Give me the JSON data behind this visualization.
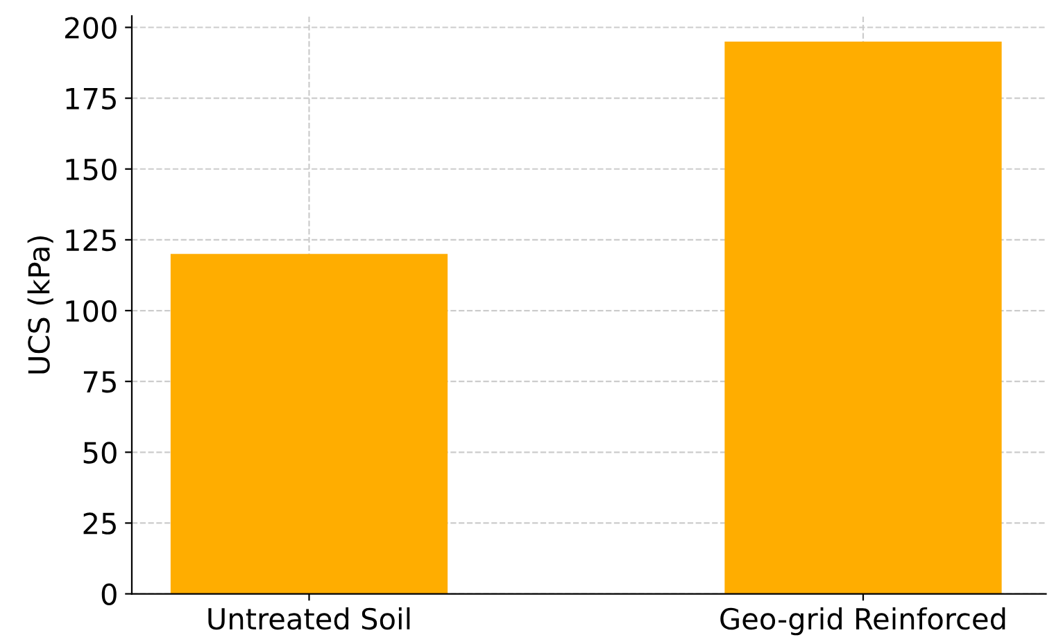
{
  "chart_data": {
    "type": "bar",
    "ylabel": "UCS (kPa)",
    "categories": [
      "Untreated Soil",
      "Geo-grid Reinforced"
    ],
    "values": [
      120,
      195
    ],
    "color": "#ffad00",
    "ylim": [
      0,
      204
    ],
    "yticks": [
      0,
      25,
      50,
      75,
      100,
      125,
      150,
      175,
      200
    ],
    "grid": true
  }
}
